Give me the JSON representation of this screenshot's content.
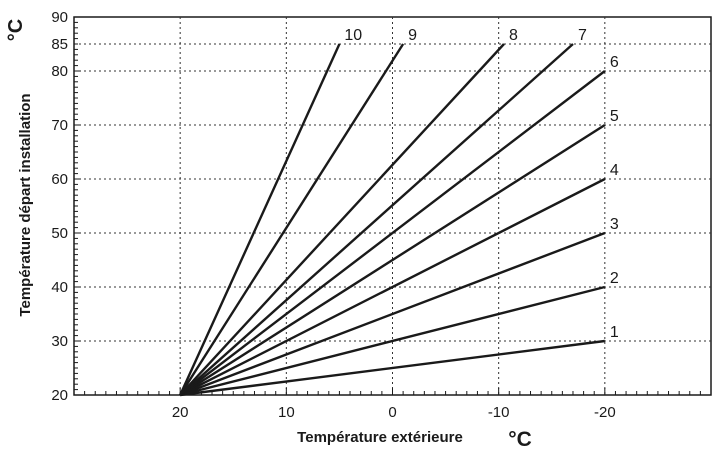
{
  "chart_data": {
    "type": "line",
    "title": "",
    "xlabel": "Température extérieure",
    "ylabel": "Température départ installation",
    "x_unit": "°C",
    "y_unit": "°C",
    "xlim": [
      30,
      -30
    ],
    "ylim": [
      20,
      90
    ],
    "x_ticks": [
      20,
      10,
      0,
      -10,
      -20
    ],
    "x_tick_labels": [
      "20",
      "10",
      "0",
      "-10",
      "-20"
    ],
    "y_ticks": [
      20,
      30,
      40,
      50,
      60,
      70,
      80,
      85,
      90
    ],
    "y_tick_labels": [
      "20",
      "30",
      "40",
      "50",
      "60",
      "70",
      "80",
      "85",
      "90"
    ],
    "grid": true,
    "grid_style": "dotted",
    "colors": {
      "line": "#1a1a1a",
      "grid": "#333333",
      "background": "#ffffff"
    },
    "series": [
      {
        "name": "1",
        "x": [
          20,
          -20
        ],
        "y": [
          20,
          30
        ]
      },
      {
        "name": "2",
        "x": [
          20,
          -20
        ],
        "y": [
          20,
          40
        ]
      },
      {
        "name": "3",
        "x": [
          20,
          -20
        ],
        "y": [
          20,
          50
        ]
      },
      {
        "name": "4",
        "x": [
          20,
          -20
        ],
        "y": [
          20,
          60
        ]
      },
      {
        "name": "5",
        "x": [
          20,
          -20
        ],
        "y": [
          20,
          70
        ]
      },
      {
        "name": "6",
        "x": [
          20,
          -20
        ],
        "y": [
          20,
          80
        ]
      },
      {
        "name": "7",
        "x": [
          20,
          -17
        ],
        "y": [
          20,
          85
        ]
      },
      {
        "name": "8",
        "x": [
          20,
          -10.5
        ],
        "y": [
          20,
          85
        ]
      },
      {
        "name": "9",
        "x": [
          20,
          -1
        ],
        "y": [
          20,
          85
        ]
      },
      {
        "name": "10",
        "x": [
          20,
          5
        ],
        "y": [
          20,
          85
        ]
      }
    ]
  }
}
